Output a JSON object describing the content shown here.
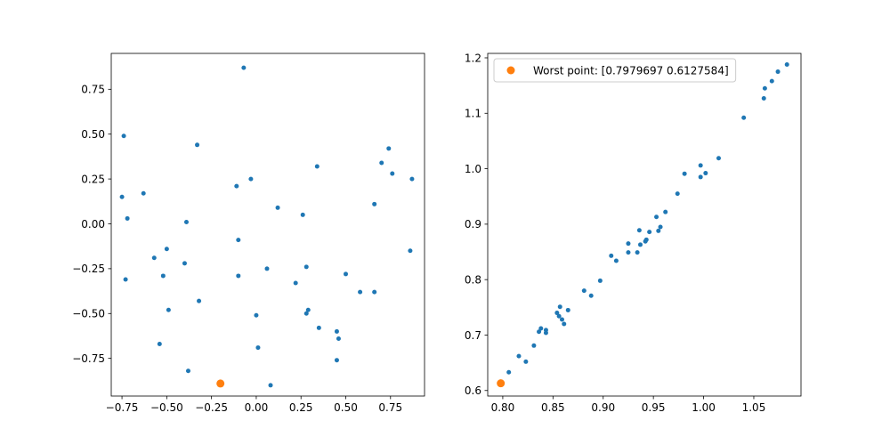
{
  "chart_data": [
    {
      "type": "scatter",
      "title": "",
      "xlabel": "",
      "ylabel": "",
      "xlim": [
        -0.81,
        0.94
      ],
      "ylim": [
        -0.96,
        0.95
      ],
      "xticks": [
        -0.75,
        -0.5,
        -0.25,
        0.0,
        0.25,
        0.5,
        0.75
      ],
      "xtick_labels": [
        "−0.75",
        "−0.50",
        "−0.25",
        "0.00",
        "0.25",
        "0.50",
        "0.75"
      ],
      "yticks": [
        -0.75,
        -0.5,
        -0.25,
        0.0,
        0.25,
        0.5,
        0.75
      ],
      "ytick_labels": [
        "−0.75",
        "−0.50",
        "−0.25",
        "0.00",
        "0.25",
        "0.50",
        "0.75"
      ],
      "grid": false,
      "series": [
        {
          "color": "#1f77b4",
          "points": [
            [
              -0.07,
              0.87
            ],
            [
              -0.74,
              0.49
            ],
            [
              -0.75,
              0.15
            ],
            [
              -0.72,
              0.03
            ],
            [
              -0.63,
              0.17
            ],
            [
              -0.33,
              0.44
            ],
            [
              -0.11,
              0.21
            ],
            [
              -0.03,
              0.25
            ],
            [
              -0.39,
              0.01
            ],
            [
              0.12,
              0.09
            ],
            [
              0.34,
              0.32
            ],
            [
              0.26,
              0.05
            ],
            [
              0.66,
              0.11
            ],
            [
              0.7,
              0.34
            ],
            [
              0.74,
              0.42
            ],
            [
              0.76,
              0.28
            ],
            [
              0.87,
              0.25
            ],
            [
              0.86,
              -0.15
            ],
            [
              -0.1,
              -0.09
            ],
            [
              -0.5,
              -0.14
            ],
            [
              -0.57,
              -0.19
            ],
            [
              -0.4,
              -0.22
            ],
            [
              -0.73,
              -0.31
            ],
            [
              -0.52,
              -0.29
            ],
            [
              -0.1,
              -0.29
            ],
            [
              0.06,
              -0.25
            ],
            [
              0.28,
              -0.24
            ],
            [
              0.5,
              -0.28
            ],
            [
              0.22,
              -0.33
            ],
            [
              0.58,
              -0.38
            ],
            [
              0.66,
              -0.38
            ],
            [
              -0.32,
              -0.43
            ],
            [
              -0.49,
              -0.48
            ],
            [
              0.29,
              -0.48
            ],
            [
              0.28,
              -0.5
            ],
            [
              0.0,
              -0.51
            ],
            [
              0.35,
              -0.58
            ],
            [
              0.45,
              -0.6
            ],
            [
              0.46,
              -0.64
            ],
            [
              -0.54,
              -0.67
            ],
            [
              0.01,
              -0.69
            ],
            [
              0.45,
              -0.76
            ],
            [
              -0.38,
              -0.82
            ],
            [
              0.08,
              -0.9
            ]
          ]
        },
        {
          "color": "#ff7f0e",
          "points": [
            [
              -0.2,
              -0.89
            ]
          ]
        }
      ]
    },
    {
      "type": "scatter",
      "title": "",
      "xlabel": "",
      "ylabel": "",
      "xlim": [
        0.785,
        1.097
      ],
      "ylim": [
        0.59,
        1.208
      ],
      "xticks": [
        0.8,
        0.85,
        0.9,
        0.95,
        1.0,
        1.05
      ],
      "xtick_labels": [
        "0.80",
        "0.85",
        "0.90",
        "0.95",
        "1.00",
        "1.05"
      ],
      "yticks": [
        0.6,
        0.7,
        0.8,
        0.9,
        1.0,
        1.1,
        1.2
      ],
      "ytick_labels": [
        "0.6",
        "0.7",
        "0.8",
        "0.9",
        "1.0",
        "1.1",
        "1.2"
      ],
      "grid": false,
      "legend": "top-left",
      "series": [
        {
          "color": "#1f77b4",
          "points": [
            [
              0.806,
              0.633
            ],
            [
              0.816,
              0.662
            ],
            [
              0.823,
              0.652
            ],
            [
              0.831,
              0.681
            ],
            [
              0.836,
              0.706
            ],
            [
              0.838,
              0.712
            ],
            [
              0.843,
              0.709
            ],
            [
              0.843,
              0.704
            ],
            [
              0.854,
              0.74
            ],
            [
              0.856,
              0.734
            ],
            [
              0.857,
              0.751
            ],
            [
              0.859,
              0.728
            ],
            [
              0.861,
              0.72
            ],
            [
              0.865,
              0.745
            ],
            [
              0.881,
              0.78
            ],
            [
              0.888,
              0.771
            ],
            [
              0.897,
              0.798
            ],
            [
              0.908,
              0.843
            ],
            [
              0.913,
              0.834
            ],
            [
              0.925,
              0.865
            ],
            [
              0.925,
              0.849
            ],
            [
              0.934,
              0.849
            ],
            [
              0.936,
              0.889
            ],
            [
              0.937,
              0.863
            ],
            [
              0.942,
              0.869
            ],
            [
              0.943,
              0.872
            ],
            [
              0.946,
              0.886
            ],
            [
              0.953,
              0.913
            ],
            [
              0.955,
              0.888
            ],
            [
              0.957,
              0.895
            ],
            [
              0.962,
              0.922
            ],
            [
              0.974,
              0.955
            ],
            [
              0.981,
              0.991
            ],
            [
              0.997,
              1.006
            ],
            [
              0.997,
              0.985
            ],
            [
              1.002,
              0.992
            ],
            [
              1.015,
              1.019
            ],
            [
              1.04,
              1.092
            ],
            [
              1.06,
              1.127
            ],
            [
              1.061,
              1.145
            ],
            [
              1.068,
              1.158
            ],
            [
              1.074,
              1.175
            ],
            [
              1.083,
              1.188
            ]
          ]
        },
        {
          "name": "Worst point: [0.7979697 0.6127584]",
          "color": "#ff7f0e",
          "points": [
            [
              0.798,
              0.613
            ]
          ]
        }
      ]
    }
  ]
}
